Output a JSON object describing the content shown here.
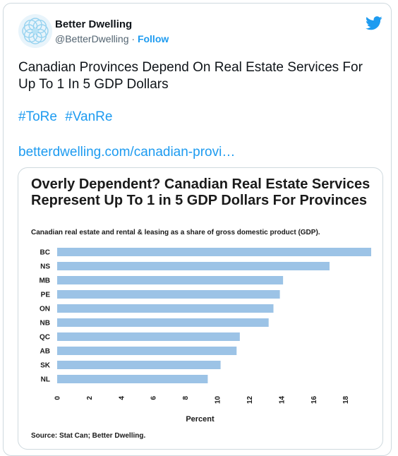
{
  "tweet": {
    "author_name": "Better Dwelling",
    "handle": "@BetterDwelling",
    "separator": "·",
    "follow_label": "Follow",
    "text": "Canadian Provinces Depend On Real Estate Services For Up To 1 In 5 GDP Dollars",
    "hashtags": [
      "#ToRe",
      "#VanRe"
    ],
    "link_text": "betterdwelling.com/canadian-provi…",
    "icons": {
      "platform": "twitter-bird-icon",
      "avatar": "flower-logo-icon"
    },
    "colors": {
      "accent": "#1d9bf0",
      "text": "#0f1419",
      "muted": "#536471",
      "bar": "#9cc3e6"
    }
  },
  "chart_data": {
    "type": "bar",
    "orientation": "horizontal",
    "title": "Overly Dependent? Canadian Real Estate Services Represent Up To 1 in 5 GDP Dollars For Provinces",
    "subtitle": "Canadian real estate and rental & leasing as a share of gross domestic product (GDP).",
    "categories": [
      "BC",
      "NS",
      "MB",
      "PE",
      "ON",
      "NB",
      "QC",
      "AB",
      "SK",
      "NL"
    ],
    "values": [
      19.6,
      17.0,
      14.1,
      13.9,
      13.5,
      13.2,
      11.4,
      11.2,
      10.2,
      9.4
    ],
    "xlabel": "Percent",
    "xlim": [
      0,
      19.6
    ],
    "xticks": [
      0,
      2,
      4,
      6,
      8,
      10,
      12,
      14,
      16,
      18
    ],
    "grid": false,
    "source": "Source: Stat Can; Better Dwelling."
  }
}
